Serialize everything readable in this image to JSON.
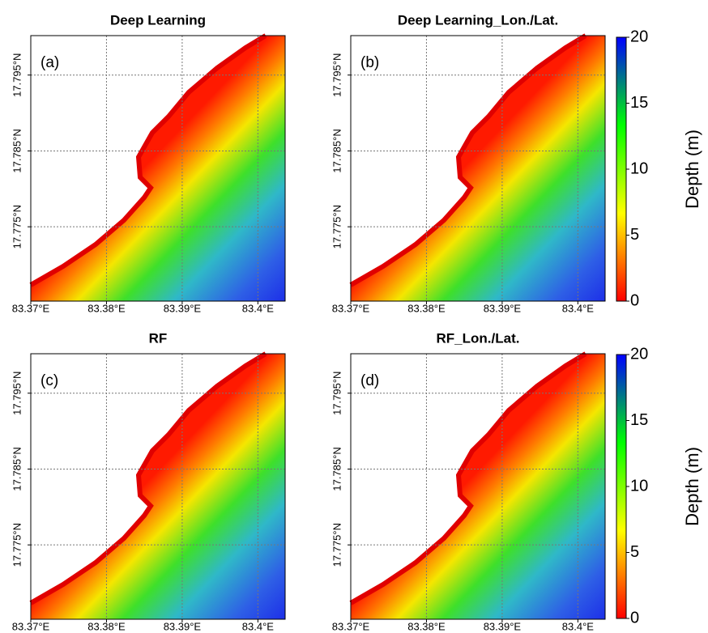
{
  "chart_data": [
    {
      "type": "map",
      "title": "Deep Learning",
      "panel_label": "(a)",
      "xlim": [
        83.37,
        83.4036
      ],
      "ylim": [
        17.7652,
        17.8002
      ],
      "xticks": [
        {
          "value": 83.37,
          "label": "83.37°E"
        },
        {
          "value": 83.38,
          "label": "83.38°E"
        },
        {
          "value": 83.39,
          "label": "83.39°E"
        },
        {
          "value": 83.4,
          "label": "83.4°E"
        }
      ],
      "yticks": [
        {
          "value": 17.775,
          "label": "17.775°N"
        },
        {
          "value": 17.785,
          "label": "17.785°N"
        },
        {
          "value": 17.795,
          "label": "17.795°N"
        }
      ],
      "grid": true
    },
    {
      "type": "map",
      "title": "Deep Learning_Lon./Lat.",
      "panel_label": "(b)",
      "xlim": [
        83.37,
        83.4036
      ],
      "ylim": [
        17.7652,
        17.8002
      ],
      "xticks": [
        {
          "value": 83.37,
          "label": "83.37°E"
        },
        {
          "value": 83.38,
          "label": "83.38°E"
        },
        {
          "value": 83.39,
          "label": "83.39°E"
        },
        {
          "value": 83.4,
          "label": "83.4°E"
        }
      ],
      "yticks": [
        {
          "value": 17.775,
          "label": "17.775°N"
        },
        {
          "value": 17.785,
          "label": "17.785°N"
        },
        {
          "value": 17.795,
          "label": "17.795°N"
        }
      ],
      "grid": true
    },
    {
      "type": "map",
      "title": "RF",
      "panel_label": "(c)",
      "xlim": [
        83.37,
        83.4036
      ],
      "ylim": [
        17.7652,
        17.8002
      ],
      "xticks": [
        {
          "value": 83.37,
          "label": "83.37°E"
        },
        {
          "value": 83.38,
          "label": "83.38°E"
        },
        {
          "value": 83.39,
          "label": "83.39°E"
        },
        {
          "value": 83.4,
          "label": "83.4°E"
        }
      ],
      "yticks": [
        {
          "value": 17.775,
          "label": "17.775°N"
        },
        {
          "value": 17.785,
          "label": "17.785°N"
        },
        {
          "value": 17.795,
          "label": "17.795°N"
        }
      ],
      "grid": true
    },
    {
      "type": "map",
      "title": "RF_Lon./Lat.",
      "panel_label": "(d)",
      "xlim": [
        83.37,
        83.4036
      ],
      "ylim": [
        17.7652,
        17.8002
      ],
      "xticks": [
        {
          "value": 83.37,
          "label": "83.37°E"
        },
        {
          "value": 83.38,
          "label": "83.38°E"
        },
        {
          "value": 83.39,
          "label": "83.39°E"
        },
        {
          "value": 83.4,
          "label": "83.4°E"
        }
      ],
      "yticks": [
        {
          "value": 17.775,
          "label": "17.775°N"
        },
        {
          "value": 17.785,
          "label": "17.785°N"
        },
        {
          "value": 17.795,
          "label": "17.795°N"
        }
      ],
      "grid": true
    },
    {
      "type": "colorbar",
      "label": "Depth (m)",
      "ylim": [
        0,
        20
      ],
      "yticks": [
        0,
        5,
        10,
        15,
        20
      ],
      "colors": [
        "#ff0000",
        "#ffff00",
        "#00ff00",
        "#0000ff"
      ]
    },
    {
      "type": "colorbar",
      "label": "Depth (m)",
      "ylim": [
        0,
        20
      ],
      "yticks": [
        0,
        5,
        10,
        15,
        20
      ],
      "colors": [
        "#ff0000",
        "#ffff00",
        "#00ff00",
        "#0000ff"
      ]
    }
  ]
}
